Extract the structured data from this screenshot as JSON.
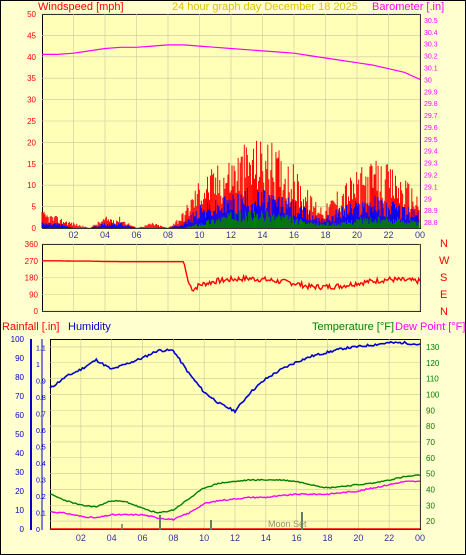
{
  "header": {
    "left_label": "Windspeed [mph]",
    "center_label": "24 hour graph day   December 18 2025",
    "right_label": "Barometer [.in]"
  },
  "bottom_header": {
    "rainfall_label": "Rainfall [.in]",
    "humidity_label": "Humidity",
    "temperature_label": "Temperature [°F]",
    "dewpoint_label": "Dew Point [°F]"
  },
  "compass": [
    "N",
    "W",
    "S",
    "E",
    "N"
  ],
  "moon_label": "Moon Set",
  "colors": {
    "background": "#ffffd0",
    "grid": "#c8c8a0",
    "windspeed": "#ff0000",
    "wind_avg": "#0000ff",
    "wind_min": "#008000",
    "barometer": "#ff00ff",
    "direction": "#ff0000",
    "humidity": "#0000cc",
    "temperature": "#008000",
    "dewpoint": "#ff00ff",
    "rain": "#ff0000"
  },
  "chart_data": [
    {
      "type": "area",
      "panel": "wind-barometer",
      "x_ticks": [
        "02",
        "04",
        "06",
        "08",
        "10",
        "12",
        "14",
        "16",
        "18",
        "20",
        "22",
        "00"
      ],
      "y_left": {
        "label": "Windspeed [mph]",
        "ticks": [
          "0",
          "5",
          "10",
          "15",
          "20",
          "25",
          "30",
          "35",
          "40",
          "45",
          "50"
        ],
        "ylim": [
          0,
          50
        ]
      },
      "y_right": {
        "label": "Barometer [.in]",
        "ticks": [
          "28.8",
          "28.9",
          "29",
          "29.1",
          "29.2",
          "29.3",
          "29.4",
          "29.5",
          "29.6",
          "29.7",
          "29.8",
          "29.9",
          "30",
          "30.1",
          "30.2",
          "30.3",
          "30.4",
          "30.5"
        ],
        "ylim": [
          28.75,
          30.55
        ]
      },
      "barometer": {
        "x": [
          0,
          1,
          2,
          3,
          4,
          5,
          6,
          7,
          8,
          9,
          10,
          11,
          12,
          13,
          14,
          15,
          16,
          17,
          18,
          19,
          20,
          21,
          22,
          23,
          24
        ],
        "y": [
          30.21,
          30.21,
          30.22,
          30.24,
          30.26,
          30.27,
          30.27,
          30.28,
          30.29,
          30.29,
          30.28,
          30.27,
          30.26,
          30.25,
          30.24,
          30.23,
          30.22,
          30.2,
          30.18,
          30.16,
          30.14,
          30.12,
          30.09,
          30.06,
          30.0
        ]
      },
      "wind_max": {
        "x": [
          0,
          1,
          2,
          3,
          4,
          5,
          6,
          7,
          8,
          9,
          10,
          11,
          12,
          13,
          14,
          15,
          16,
          17,
          18,
          19,
          20,
          21,
          22,
          23,
          24
        ],
        "y": [
          3,
          2,
          1,
          0,
          2,
          2,
          0,
          1,
          0,
          3,
          9,
          11,
          13,
          15,
          16,
          14,
          11,
          6,
          4,
          8,
          10,
          12,
          11,
          9,
          6
        ]
      },
      "wind_avg": {
        "x": [
          0,
          1,
          2,
          3,
          4,
          5,
          6,
          7,
          8,
          9,
          10,
          11,
          12,
          13,
          14,
          15,
          16,
          17,
          18,
          19,
          20,
          21,
          22,
          23,
          24
        ],
        "y": [
          1,
          1,
          0,
          0,
          1,
          1,
          0,
          0,
          0,
          1,
          4,
          5,
          6,
          7,
          7,
          6,
          5,
          3,
          2,
          4,
          5,
          6,
          5,
          4,
          3
        ]
      },
      "wind_min": {
        "x": [
          0,
          1,
          2,
          3,
          4,
          5,
          6,
          7,
          8,
          9,
          10,
          11,
          12,
          13,
          14,
          15,
          16,
          17,
          18,
          19,
          20,
          21,
          22,
          23,
          24
        ],
        "y": [
          0,
          0,
          0,
          0,
          0,
          0,
          0,
          0,
          0,
          0,
          1,
          2,
          3,
          3,
          3,
          3,
          2,
          1,
          1,
          1,
          2,
          2,
          2,
          2,
          1
        ]
      }
    },
    {
      "type": "line",
      "panel": "wind-direction",
      "y_ticks": [
        "0",
        "90",
        "180",
        "270",
        "360"
      ],
      "ylim": [
        0,
        360
      ],
      "x": [
        0,
        1,
        2,
        3,
        4,
        5,
        6,
        7,
        8,
        9,
        9.3,
        9.6,
        10,
        11,
        12,
        13,
        14,
        15,
        16,
        17,
        18,
        19,
        20,
        21,
        22,
        23,
        24
      ],
      "y": [
        270,
        270,
        268,
        268,
        266,
        265,
        265,
        265,
        265,
        265,
        150,
        115,
        140,
        160,
        170,
        175,
        170,
        160,
        150,
        130,
        130,
        135,
        150,
        160,
        170,
        165,
        160
      ]
    },
    {
      "type": "line",
      "panel": "rain-humidity-temperature",
      "x_ticks": [
        "02",
        "04",
        "06",
        "08",
        "10",
        "12",
        "14",
        "16",
        "18",
        "20",
        "22",
        "00"
      ],
      "y_left": {
        "label": "Humidity",
        "ticks": [
          "0",
          "10",
          "20",
          "30",
          "40",
          "50",
          "60",
          "70",
          "80",
          "90",
          "100"
        ],
        "ylim": [
          0,
          100
        ]
      },
      "y_rain": {
        "label": "Rainfall [.in]",
        "ticks": [
          "0",
          "0.1",
          "0.2",
          "0.3",
          "0.4",
          "0.5",
          "0.6",
          "0.7",
          "0.8",
          "0.9",
          "1",
          "1.1"
        ],
        "ylim": [
          0,
          1.15
        ]
      },
      "y_right": {
        "label": "Temperature [°F]",
        "ticks": [
          "20",
          "30",
          "40",
          "50",
          "60",
          "70",
          "80",
          "90",
          "100",
          "110",
          "120",
          "130"
        ],
        "ylim": [
          15,
          135
        ]
      },
      "rainfall": {
        "x": [
          0,
          24
        ],
        "y": [
          0,
          0
        ]
      },
      "humidity": {
        "x": [
          0,
          1,
          2,
          3,
          4,
          5,
          6,
          7,
          8,
          9,
          10,
          11,
          12,
          13,
          14,
          15,
          16,
          17,
          18,
          19,
          20,
          21,
          22,
          23,
          24
        ],
        "y": [
          74,
          80,
          84,
          89,
          84,
          87,
          90,
          94,
          94,
          82,
          72,
          66,
          62,
          72,
          79,
          84,
          88,
          91,
          93,
          95,
          96,
          97,
          98,
          98,
          97
        ]
      },
      "temperature": {
        "x": [
          0,
          1,
          2,
          3,
          4,
          5,
          6,
          7,
          8,
          9,
          10,
          11,
          12,
          13,
          14,
          15,
          16,
          17,
          18,
          19,
          20,
          21,
          22,
          23,
          24
        ],
        "y": [
          37,
          33,
          30,
          29,
          33,
          32,
          28,
          25,
          27,
          34,
          41,
          44,
          45,
          46,
          46,
          46,
          45,
          43,
          41,
          42,
          43,
          44,
          46,
          48,
          49
        ]
      },
      "dewpoint": {
        "x": [
          0,
          1,
          2,
          3,
          4,
          5,
          6,
          7,
          8,
          9,
          10,
          11,
          12,
          13,
          14,
          15,
          16,
          17,
          18,
          19,
          20,
          21,
          22,
          23,
          24
        ],
        "y": [
          26,
          25,
          23,
          22,
          24,
          24,
          24,
          22,
          21,
          25,
          31,
          33,
          34,
          35,
          35,
          36,
          37,
          37,
          37,
          38,
          39,
          41,
          43,
          45,
          45
        ]
      }
    }
  ]
}
